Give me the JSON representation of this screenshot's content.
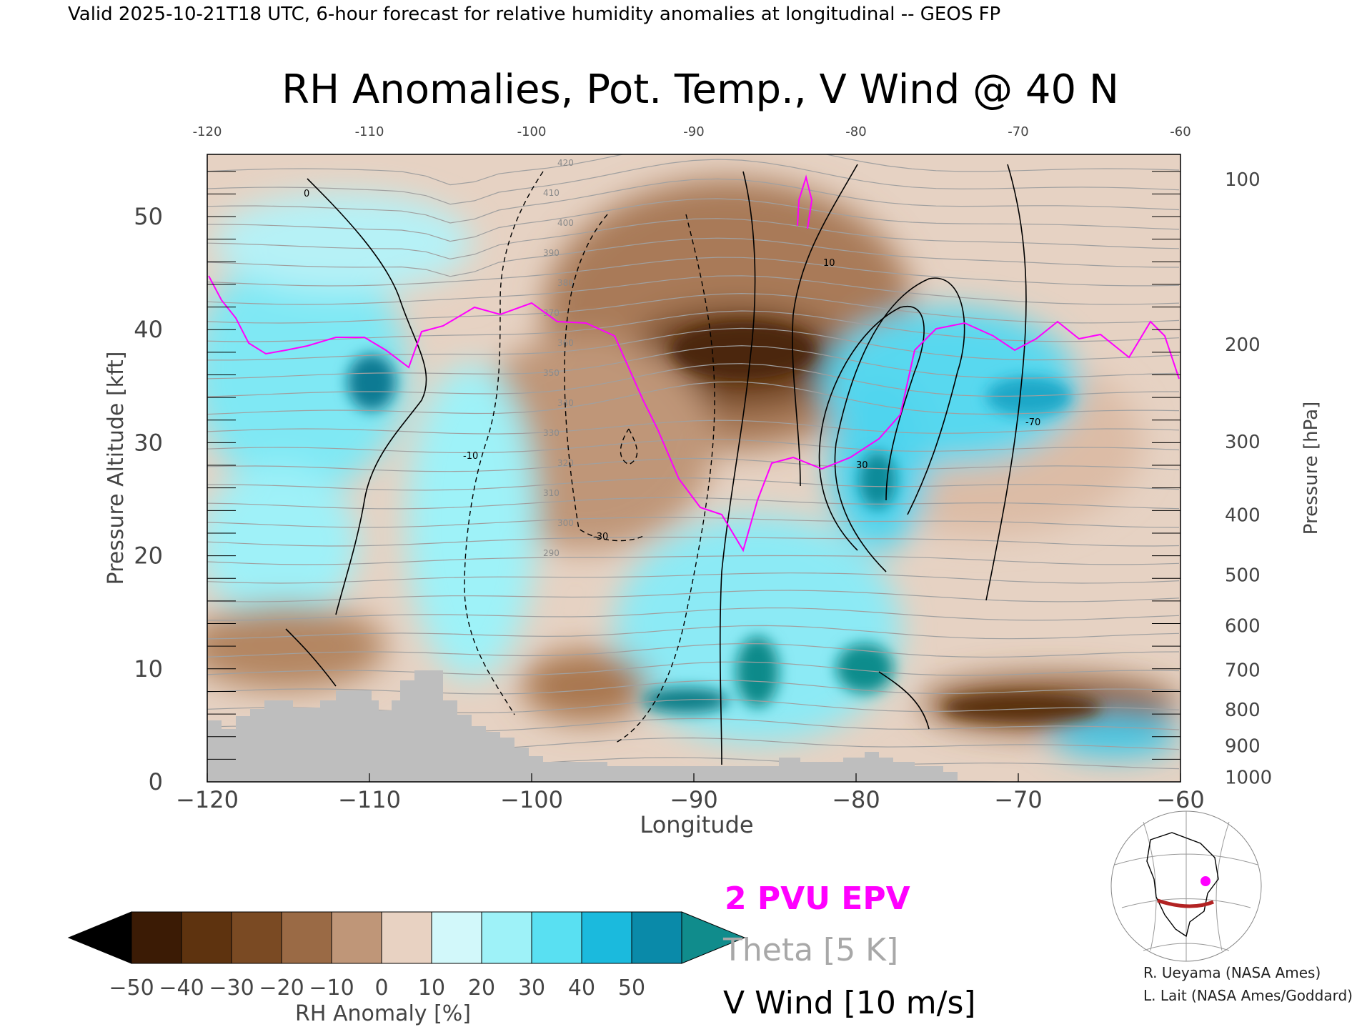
{
  "header": {
    "valid_line": "Valid 2025-10-21T18 UTC, 6-hour forecast for relative humidity anomalies at longitudinal -- GEOS FP"
  },
  "chart_data": {
    "type": "heatmap",
    "title": "RH Anomalies, Pot. Temp., V Wind @ 40 N",
    "xlabel": "Longitude",
    "ylabel": "Pressure Altitude [kft]",
    "y2label": "Pressure [hPa]",
    "xlim": [
      -120,
      -60
    ],
    "ylim": [
      0,
      55.5
    ],
    "x_ticks": [
      -120,
      -110,
      -100,
      -90,
      -80,
      -70,
      -60
    ],
    "x_tick_labels": [
      "−120",
      "−110",
      "−100",
      "−90",
      "−80",
      "−70",
      "−60"
    ],
    "top_tick_labels": [
      "-120",
      "-110",
      "-100",
      "-90",
      "-80",
      "-70",
      "-60"
    ],
    "y_ticks": [
      0,
      10,
      20,
      30,
      40,
      50
    ],
    "y_tick_labels": [
      "0",
      "10",
      "20",
      "30",
      "40",
      "50"
    ],
    "pressure_ticks": [
      {
        "kft": 53.3,
        "label": "100"
      },
      {
        "kft": 38.7,
        "label": "200"
      },
      {
        "kft": 30.1,
        "label": "300"
      },
      {
        "kft": 23.6,
        "label": "400"
      },
      {
        "kft": 18.3,
        "label": "500"
      },
      {
        "kft": 13.8,
        "label": "600"
      },
      {
        "kft": 9.9,
        "label": "700"
      },
      {
        "kft": 6.4,
        "label": "800"
      },
      {
        "kft": 3.2,
        "label": "900"
      },
      {
        "kft": 0.4,
        "label": "1000"
      }
    ],
    "colorbar": {
      "label": "RH Anomaly [%]",
      "tick_labels": [
        "−50",
        "−40",
        "−30",
        "−20",
        "−10",
        "0",
        "10",
        "20",
        "30",
        "40",
        "50"
      ],
      "colors": [
        "#3b1b05",
        "#5e330f",
        "#7a4a23",
        "#9a6a45",
        "#bf9678",
        "#e8d2c2",
        "#d2f8fa",
        "#9ef2f8",
        "#59e0f2",
        "#1bbadd",
        "#0a8aa9"
      ],
      "under_color": "#000000",
      "over_color": "#108c8c"
    },
    "field_peaks": [
      {
        "x": -85.5,
        "y": 38,
        "value": -45
      },
      {
        "x": -110,
        "y": 35,
        "value": 45
      },
      {
        "x": -79,
        "y": 26,
        "value": 45
      },
      {
        "x": -86.5,
        "y": 9,
        "value": 45
      },
      {
        "x": -70,
        "y": 34.5,
        "value": 40
      },
      {
        "x": -76,
        "y": 6,
        "value": -45
      },
      {
        "x": -106,
        "y": 9.8,
        "value": -20
      }
    ],
    "legend": {
      "epv": "2 PVU EPV",
      "theta": "Theta [5 K]",
      "vwind": "V Wind [10 m/s]"
    },
    "colors": {
      "epv": "#ff00ff",
      "theta": "#a0a0a0",
      "vwind": "#000000",
      "topography": "#bebebe",
      "section_line": "#b22222"
    },
    "theta_labels": [
      "420",
      "410",
      "400",
      "390",
      "380",
      "370",
      "360",
      "350",
      "340",
      "330",
      "320",
      "310",
      "300",
      "290"
    ],
    "vwind_labels": [
      "0",
      "10",
      "-10",
      "-30",
      "30",
      "-70"
    ],
    "credits": [
      "R. Ueyama (NASA Ames)",
      "L. Lait (NASA Ames/Goddard)"
    ]
  }
}
